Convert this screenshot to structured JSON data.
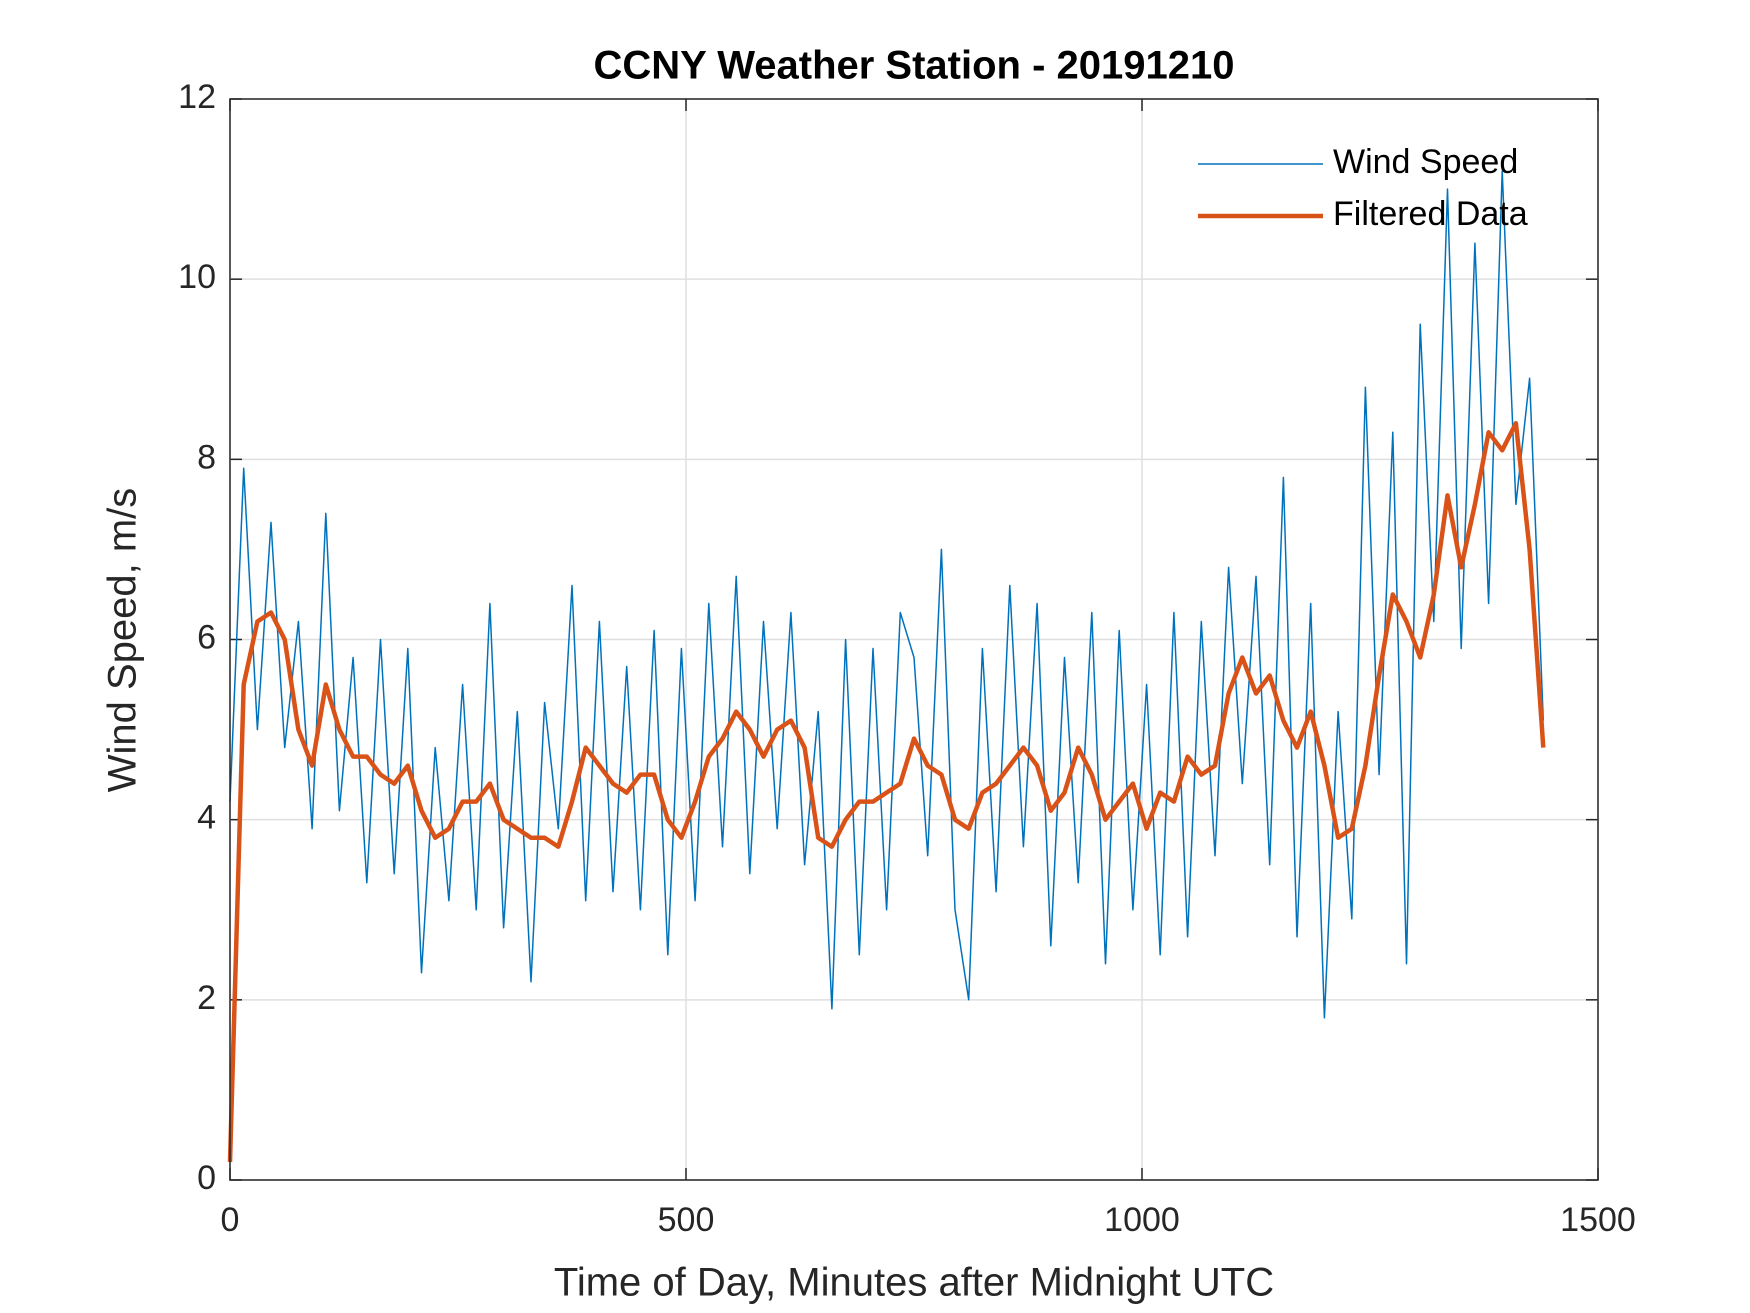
{
  "chart_data": {
    "type": "line",
    "title": "CCNY Weather Station - 20191210",
    "x_label": "Time of Day, Minutes after Midnight UTC",
    "y_label": "Wind Speed, m/s",
    "x": [
      0,
      15,
      30,
      45,
      60,
      75,
      90,
      105,
      120,
      135,
      150,
      165,
      180,
      195,
      210,
      225,
      240,
      255,
      270,
      285,
      300,
      315,
      330,
      345,
      360,
      375,
      390,
      405,
      420,
      435,
      450,
      465,
      480,
      495,
      510,
      525,
      540,
      555,
      570,
      585,
      600,
      615,
      630,
      645,
      660,
      675,
      690,
      705,
      720,
      735,
      750,
      765,
      780,
      795,
      810,
      825,
      840,
      855,
      870,
      885,
      900,
      915,
      930,
      945,
      960,
      975,
      990,
      1005,
      1020,
      1035,
      1050,
      1065,
      1080,
      1095,
      1110,
      1125,
      1140,
      1155,
      1170,
      1185,
      1200,
      1215,
      1230,
      1245,
      1260,
      1275,
      1290,
      1305,
      1320,
      1335,
      1350,
      1365,
      1380,
      1395,
      1410,
      1425,
      1440
    ],
    "series": [
      {
        "name": "Wind Speed",
        "color": "#0072bd",
        "width": 1.5,
        "values": [
          4.2,
          7.9,
          5.0,
          7.3,
          4.8,
          6.2,
          3.9,
          7.4,
          4.1,
          5.8,
          3.3,
          6.0,
          3.4,
          5.9,
          2.3,
          4.8,
          3.1,
          5.5,
          3.0,
          6.4,
          2.8,
          5.2,
          2.2,
          5.3,
          3.9,
          6.6,
          3.1,
          6.2,
          3.2,
          5.7,
          3.0,
          6.1,
          2.5,
          5.9,
          3.1,
          6.4,
          3.7,
          6.7,
          3.4,
          6.2,
          3.9,
          6.3,
          3.5,
          5.2,
          1.9,
          6.0,
          2.5,
          5.9,
          3.0,
          6.3,
          5.8,
          3.6,
          7.0,
          3.0,
          2.0,
          5.9,
          3.2,
          6.6,
          3.7,
          6.4,
          2.6,
          5.8,
          3.3,
          6.3,
          2.4,
          6.1,
          3.0,
          5.5,
          2.5,
          6.3,
          2.7,
          6.2,
          3.6,
          6.8,
          4.4,
          6.7,
          3.5,
          7.8,
          2.7,
          6.4,
          1.8,
          5.2,
          2.9,
          8.8,
          4.5,
          8.3,
          2.4,
          9.5,
          6.2,
          11.0,
          5.9,
          10.4,
          6.4,
          11.2,
          7.5,
          8.9,
          5.1
        ]
      },
      {
        "name": "Filtered Data",
        "color": "#d95319",
        "width": 4.5,
        "values": [
          0.2,
          5.5,
          6.2,
          6.3,
          6.0,
          5.0,
          4.6,
          5.5,
          5.0,
          4.7,
          4.7,
          4.5,
          4.4,
          4.6,
          4.1,
          3.8,
          3.9,
          4.2,
          4.2,
          4.4,
          4.0,
          3.9,
          3.8,
          3.8,
          3.7,
          4.2,
          4.8,
          4.6,
          4.4,
          4.3,
          4.5,
          4.5,
          4.0,
          3.8,
          4.2,
          4.7,
          4.9,
          5.2,
          5.0,
          4.7,
          5.0,
          5.1,
          4.8,
          3.8,
          3.7,
          4.0,
          4.2,
          4.2,
          4.3,
          4.4,
          4.9,
          4.6,
          4.5,
          4.0,
          3.9,
          4.3,
          4.4,
          4.6,
          4.8,
          4.6,
          4.1,
          4.3,
          4.8,
          4.5,
          4.0,
          4.2,
          4.4,
          3.9,
          4.3,
          4.2,
          4.7,
          4.5,
          4.6,
          5.4,
          5.8,
          5.4,
          5.6,
          5.1,
          4.8,
          5.2,
          4.6,
          3.8,
          3.9,
          4.6,
          5.6,
          6.5,
          6.2,
          5.8,
          6.5,
          7.6,
          6.8,
          7.5,
          8.3,
          8.1,
          8.4,
          7.0,
          4.8
        ]
      }
    ],
    "xlim": [
      0,
      1500
    ],
    "xticks": [
      0,
      500,
      1000,
      1500
    ],
    "ylim": [
      0,
      12
    ],
    "yticks": [
      0,
      2,
      4,
      6,
      8,
      10,
      12
    ],
    "grid": true,
    "legend": "top-right"
  }
}
